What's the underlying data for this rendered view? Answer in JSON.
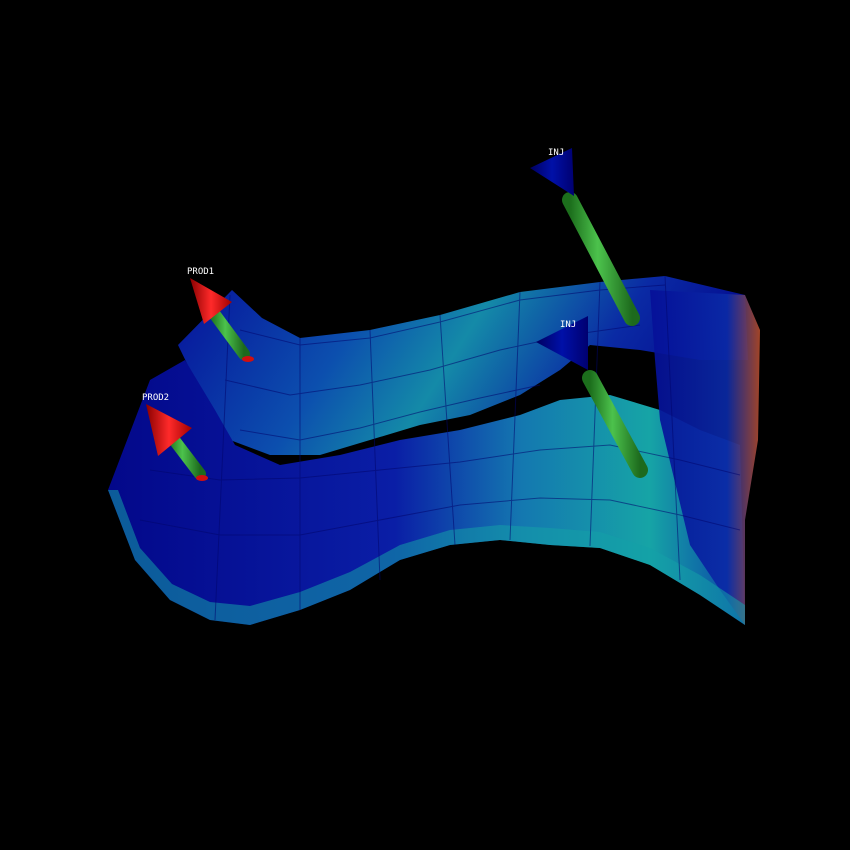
{
  "scene": {
    "background": "#000000",
    "colors": {
      "surface_deep": "#00008c",
      "surface_blue": "#0a1aa8",
      "surface_mid": "#0c55b0",
      "surface_teal": "#149aa8",
      "surface_hot": "#b84a2a",
      "producer_cone": "#e01010",
      "injector_cone": "#00007a",
      "well_shaft": "#2e9a2e"
    },
    "wells": [
      {
        "label": "PROD1",
        "kind": "producer",
        "icon": "red-cone-arrow-icon"
      },
      {
        "label": "PROD2",
        "kind": "producer",
        "icon": "red-cone-arrow-icon"
      },
      {
        "label": "INJ",
        "kind": "injector",
        "icon": "blue-cone-arrow-icon"
      },
      {
        "label": "INJ",
        "kind": "injector",
        "icon": "blue-cone-arrow-icon"
      }
    ]
  }
}
